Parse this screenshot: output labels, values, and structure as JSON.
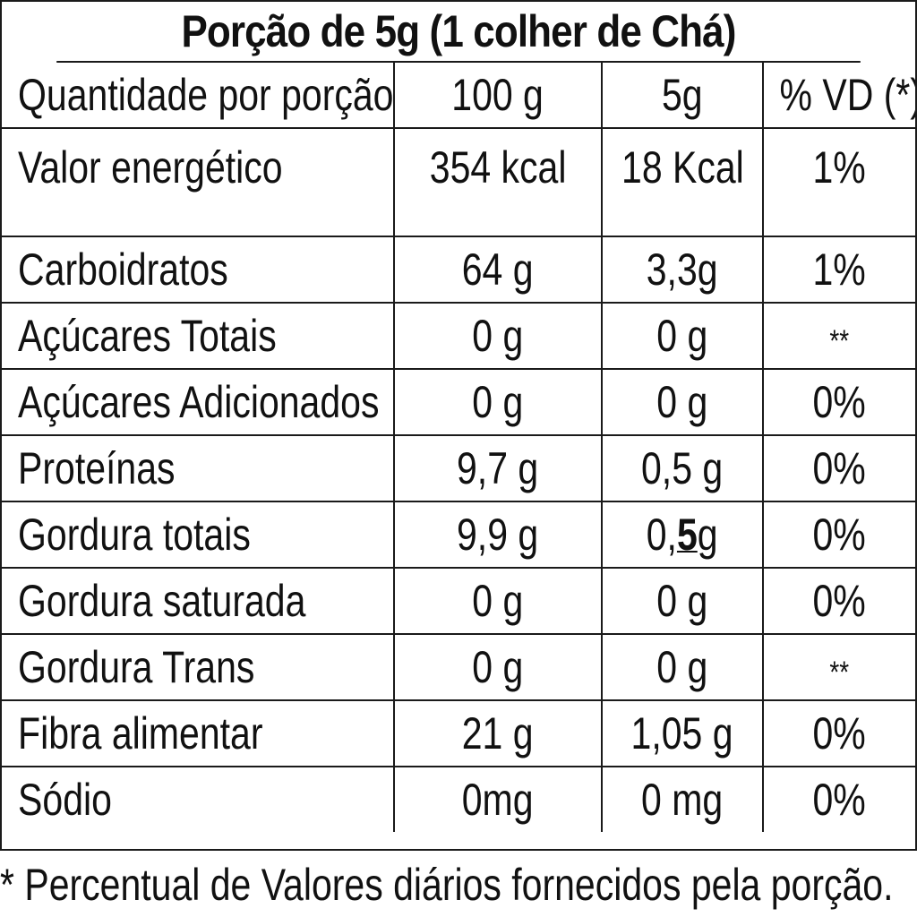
{
  "title": "Porção de 5g (1 colher de Chá)",
  "header": {
    "label": "Quantidade por porção",
    "col_100g": "100 g",
    "col_5g": "5g",
    "col_vd": "% VD (*)"
  },
  "rows": [
    {
      "name": "Valor energético",
      "per_100g": "354 kcal",
      "per_5g": "18 Kcal",
      "vd": "1%"
    },
    {
      "name": "Carboidratos",
      "per_100g": "64 g",
      "per_5g": "3,3g",
      "vd": "1%"
    },
    {
      "name": "Açúcares Totais",
      "per_100g": "0 g",
      "per_5g": "0 g",
      "vd": "**"
    },
    {
      "name": "Açúcares Adicionados",
      "per_100g": "0 g",
      "per_5g": "0 g",
      "vd": "0%"
    },
    {
      "name": "Proteínas",
      "per_100g": "9,7 g",
      "per_5g": "0,5 g",
      "vd": "0%"
    },
    {
      "name": "Gordura totais",
      "per_100g": "9,9 g",
      "per_5g_a": "0,",
      "per_5g_b": "5",
      "per_5g_c": "g",
      "vd": "0%"
    },
    {
      "name": "Gordura saturada",
      "per_100g": "0 g",
      "per_5g": "0 g",
      "vd": "0%"
    },
    {
      "name": "Gordura Trans",
      "per_100g": "0 g",
      "per_5g": "0 g",
      "vd": "**"
    },
    {
      "name": "Fibra alimentar",
      "per_100g": "21 g",
      "per_5g": "1,05 g",
      "vd": "0%"
    },
    {
      "name": "Sódio",
      "per_100g": "0mg",
      "per_5g": "0 mg",
      "vd": "0%"
    }
  ],
  "footnote": "* Percentual de Valores diários fornecidos pela porção."
}
